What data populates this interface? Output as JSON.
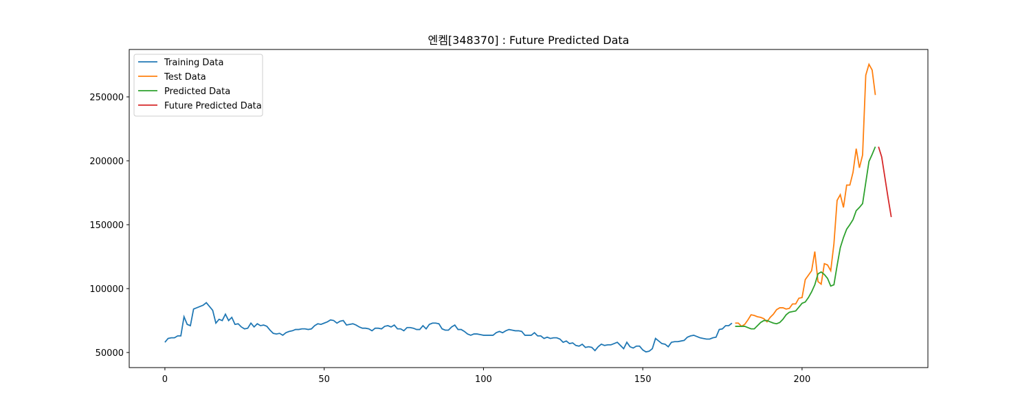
{
  "chart_data": {
    "type": "line",
    "title": "엔켐[348370] : Future Predicted Data",
    "xlim": [
      -11.2,
      239.5
    ],
    "ylim": [
      38200,
      287100
    ],
    "xticks": [
      0,
      50,
      100,
      150,
      200
    ],
    "yticks": [
      50000,
      100000,
      150000,
      200000,
      250000
    ],
    "legend": "upper left",
    "series": [
      {
        "name": "Training Data",
        "color": "#1f77b4",
        "x": [
          0,
          1,
          2,
          3,
          4,
          5,
          6,
          7,
          8,
          9,
          10,
          11,
          12,
          13,
          14,
          15,
          16,
          17,
          18,
          19,
          20,
          21,
          22,
          23,
          24,
          25,
          26,
          27,
          28,
          29,
          30,
          31,
          32,
          33,
          34,
          35,
          36,
          37,
          38,
          39,
          40,
          41,
          42,
          43,
          44,
          45,
          46,
          47,
          48,
          49,
          50,
          51,
          52,
          53,
          54,
          55,
          56,
          57,
          58,
          59,
          60,
          61,
          62,
          63,
          64,
          65,
          66,
          67,
          68,
          69,
          70,
          71,
          72,
          73,
          74,
          75,
          76,
          77,
          78,
          79,
          80,
          81,
          82,
          83,
          84,
          85,
          86,
          87,
          88,
          89,
          90,
          91,
          92,
          93,
          94,
          95,
          96,
          97,
          98,
          99,
          100,
          101,
          102,
          103,
          104,
          105,
          106,
          107,
          108,
          109,
          110,
          111,
          112,
          113,
          114,
          115,
          116,
          117,
          118,
          119,
          120,
          121,
          122,
          123,
          124,
          125,
          126,
          127,
          128,
          129,
          130,
          131,
          132,
          133,
          134,
          135,
          136,
          137,
          138,
          139,
          140,
          141,
          142,
          143,
          144,
          145,
          146,
          147,
          148,
          149,
          150,
          151,
          152,
          153,
          154,
          155,
          156,
          157,
          158,
          159,
          160,
          161,
          162,
          163,
          164,
          165,
          166,
          167,
          168,
          169,
          170,
          171,
          172,
          173,
          174,
          175,
          176,
          177,
          178
        ],
        "values": [
          58000,
          61000,
          61500,
          61500,
          63000,
          63000,
          78000,
          72000,
          71000,
          84000,
          85000,
          86000,
          87000,
          89000,
          86000,
          83000,
          73000,
          76000,
          75000,
          80000,
          75000,
          77500,
          72000,
          72500,
          70000,
          68500,
          69000,
          73000,
          70000,
          72500,
          71000,
          71500,
          70500,
          67500,
          65000,
          64500,
          65000,
          63500,
          65500,
          66500,
          67000,
          68000,
          68000,
          68500,
          68500,
          68000,
          68500,
          71000,
          72500,
          72000,
          73000,
          74000,
          75500,
          75000,
          73000,
          74500,
          75000,
          71500,
          72000,
          72500,
          71500,
          70000,
          69000,
          69000,
          68500,
          67000,
          69000,
          69000,
          68500,
          70500,
          71000,
          70000,
          71500,
          68500,
          68500,
          67000,
          69500,
          69500,
          69000,
          68000,
          68000,
          71000,
          68500,
          72000,
          73000,
          73000,
          72500,
          68500,
          67500,
          67500,
          70000,
          71500,
          68000,
          68000,
          66500,
          64500,
          63500,
          64500,
          64500,
          64000,
          63500,
          63500,
          63500,
          63500,
          65500,
          66500,
          65500,
          67000,
          68000,
          67500,
          67000,
          67000,
          66500,
          63500,
          63500,
          63500,
          65500,
          63000,
          63000,
          61000,
          62000,
          61000,
          61500,
          61500,
          60500,
          58000,
          59000,
          57000,
          57500,
          55500,
          55000,
          56500,
          54000,
          54500,
          54000,
          51500,
          54500,
          56500,
          55500,
          56000,
          56000,
          57000,
          58000,
          55500,
          53000,
          58000,
          54500,
          53500,
          55000,
          55000,
          52000,
          50500,
          51000,
          53000,
          61000,
          59000,
          57000,
          56500,
          54500,
          58000,
          58500,
          58500,
          59000,
          59500,
          62000,
          63000,
          63500,
          62500,
          61500,
          61000,
          60500,
          60500,
          61500,
          62000,
          68000,
          68500,
          71000,
          71000,
          73000
        ]
      },
      {
        "name": "Test Data",
        "color": "#ff7f0e",
        "x": [
          179,
          180,
          181,
          182,
          183,
          184,
          185,
          186,
          187,
          188,
          189,
          190,
          191,
          192,
          193,
          194,
          195,
          196,
          197,
          198,
          199,
          200,
          201,
          202,
          203,
          204,
          205,
          206,
          207,
          208,
          209,
          210,
          211,
          212,
          213,
          214,
          215,
          216,
          217,
          218,
          219,
          220,
          221,
          222,
          223
        ],
        "values": [
          73000,
          73000,
          70500,
          72000,
          75500,
          79500,
          79000,
          78000,
          77500,
          76500,
          74000,
          77500,
          80000,
          83500,
          85000,
          85000,
          84000,
          84500,
          88000,
          88000,
          92500,
          93000,
          107000,
          110500,
          114000,
          129000,
          105500,
          103500,
          119500,
          118500,
          114000,
          135000,
          169000,
          173500,
          163500,
          181000,
          181000,
          191000,
          209500,
          194500,
          204500,
          267000,
          275500,
          271000,
          251500
        ]
      },
      {
        "name": "Predicted Data",
        "color": "#2ca02c",
        "x": [
          179,
          180,
          181,
          182,
          183,
          184,
          185,
          186,
          187,
          188,
          189,
          190,
          191,
          192,
          193,
          194,
          195,
          196,
          197,
          198,
          199,
          200,
          201,
          202,
          203,
          204,
          205,
          206,
          207,
          208,
          209,
          210,
          211,
          212,
          213,
          214,
          215,
          216,
          217,
          218,
          219,
          220,
          221,
          222,
          223
        ],
        "values": [
          70500,
          70500,
          70500,
          70500,
          69500,
          68500,
          68500,
          71000,
          73500,
          75000,
          75000,
          74000,
          73000,
          72500,
          73500,
          76000,
          79500,
          81500,
          82000,
          82500,
          85500,
          88500,
          89500,
          93000,
          97500,
          103000,
          111500,
          113000,
          111000,
          108000,
          102000,
          103000,
          118000,
          132000,
          140000,
          146500,
          150000,
          154000,
          161000,
          163500,
          166500,
          183000,
          199500,
          205000,
          211000
        ]
      },
      {
        "name": "Future Predicted Data",
        "color": "#d62728",
        "x": [
          224,
          225,
          226,
          227,
          228
        ],
        "values": [
          211000,
          203000,
          187000,
          171000,
          156000
        ]
      }
    ]
  }
}
